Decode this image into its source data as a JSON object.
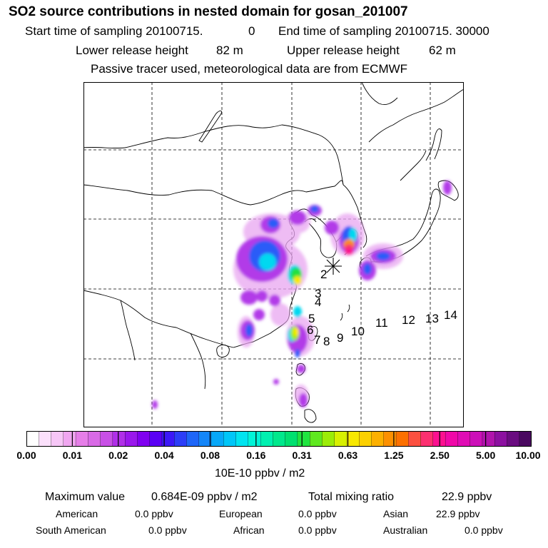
{
  "header": {
    "title": "SO2 source contributions in nested domain for gosan_201007",
    "start_label": "Start time of sampling 20100715.",
    "start_hour": "0",
    "end_label": "End time of sampling 20100715. 30000",
    "lower_label": "Lower release height",
    "lower_value": "82 m",
    "upper_label": "Upper release height",
    "upper_value": "62 m",
    "tracer_note": "Passive tracer used, meteorological data are from ECMWF"
  },
  "map": {
    "receptor_marker": "star-receptor",
    "trajectory_labels": [
      "2",
      "3",
      "4",
      "5",
      "6",
      "7",
      "8",
      "9",
      "10",
      "11",
      "12",
      "13",
      "14"
    ]
  },
  "colorbar": {
    "ticks": [
      "0.00",
      "0.01",
      "0.02",
      "0.04",
      "0.08",
      "0.16",
      "0.31",
      "0.63",
      "1.25",
      "2.50",
      "5.00",
      "10.00"
    ],
    "colors": [
      "#ffffff",
      "#fbe0fb",
      "#f6c6f6",
      "#f0a6f0",
      "#e67ee8",
      "#d96ae6",
      "#c850e6",
      "#b030e8",
      "#9a18ec",
      "#8000f0",
      "#5a00f4",
      "#3c18f8",
      "#2c3ef8",
      "#1e66f8",
      "#1486f8",
      "#08a8f8",
      "#00c6f8",
      "#00e4f0",
      "#00f4d8",
      "#00f0b0",
      "#00e88c",
      "#00e070",
      "#20e440",
      "#60e820",
      "#9cec08",
      "#d8f000",
      "#f8e800",
      "#fcd000",
      "#fcb000",
      "#fc9000",
      "#fc7000",
      "#fc5040",
      "#fc3070",
      "#fc1090",
      "#f008a8",
      "#e00cb4",
      "#cc10b8",
      "#b014ac",
      "#8c10a0",
      "#6a0c80",
      "#4a0860"
    ],
    "units": "10E-10 ppbv / m2"
  },
  "summary": {
    "max_label": "Maximum value",
    "max_value": "0.684E-09 ppbv / m2",
    "total_label": "Total mixing ratio",
    "total_value": "22.9 ppbv",
    "regions": [
      {
        "name": "American",
        "value": "0.0 ppbv"
      },
      {
        "name": "European",
        "value": "0.0 ppbv"
      },
      {
        "name": "Asian",
        "value": "22.9 ppbv"
      },
      {
        "name": "South American",
        "value": "0.0 ppbv"
      },
      {
        "name": "African",
        "value": "0.0 ppbv"
      },
      {
        "name": "Australian",
        "value": "0.0 ppbv"
      }
    ]
  }
}
